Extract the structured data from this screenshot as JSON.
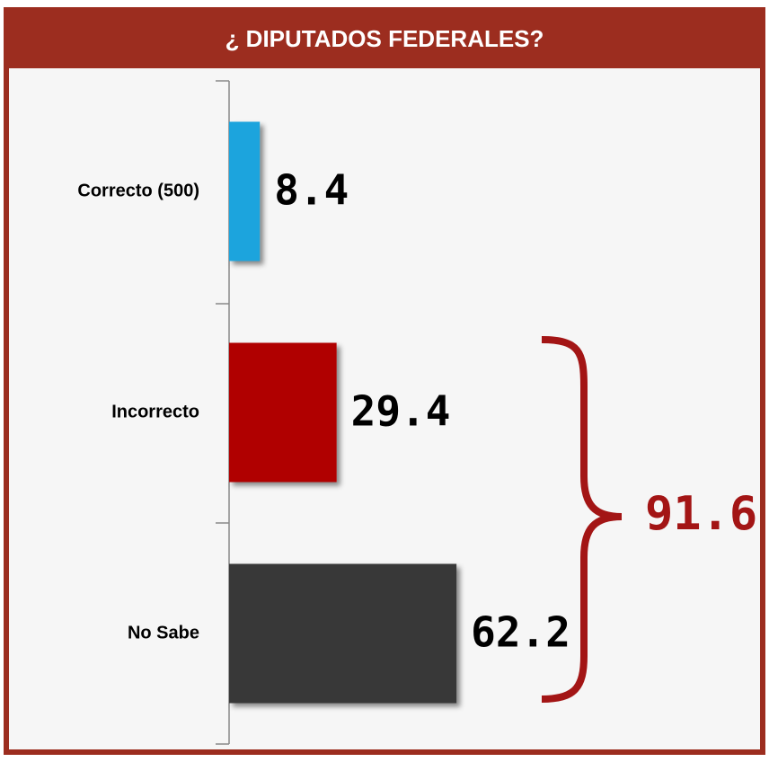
{
  "chart_data": {
    "type": "bar",
    "orientation": "horizontal",
    "title": "¿ DIPUTADOS FEDERALES?",
    "categories": [
      "Correcto (500)",
      "Incorrecto",
      "No Sabe"
    ],
    "values": [
      8.4,
      29.4,
      62.2
    ],
    "colors": [
      "#1ea4dd",
      "#b00000",
      "#383838"
    ],
    "annotation": 91.6
  }
}
